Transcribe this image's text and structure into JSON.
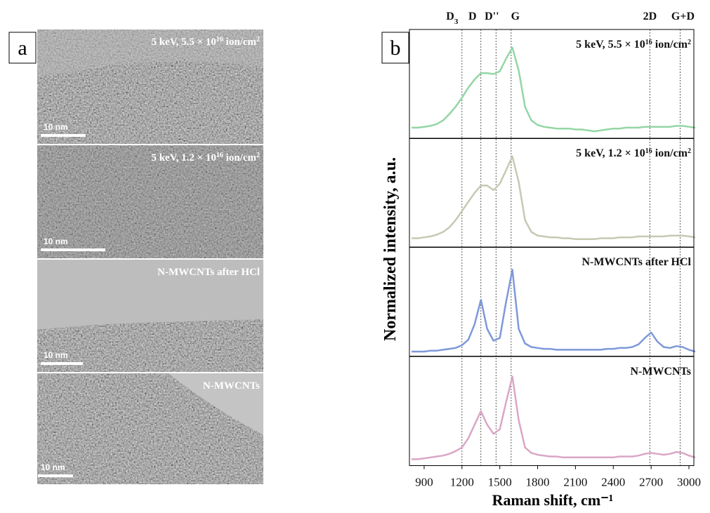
{
  "panel_a": {
    "label": "a",
    "images": [
      {
        "caption": {
          "text": "5 keV, 5.5 × 10",
          "exp": "16",
          "unit": " ion/cm",
          "unit_exp": "2"
        },
        "scale_bar": "10 nm"
      },
      {
        "caption": {
          "text": "5 keV, 1.2 × 10",
          "exp": "16",
          "unit": " ion/cm",
          "unit_exp": "2"
        },
        "scale_bar": "10 nm"
      },
      {
        "caption": {
          "text": "N-MWCNTs after HCl"
        },
        "scale_bar": "10 nm"
      },
      {
        "caption": {
          "text": "N-MWCNTs"
        },
        "scale_bar": "10 nm"
      }
    ]
  },
  "chart_data": {
    "type": "line",
    "panel_label": "b",
    "xlabel": "Raman shift, cm⁻¹",
    "ylabel": "Normalized intensity, a.u.",
    "xlim": [
      800,
      3050
    ],
    "xticks": [
      900,
      1200,
      1500,
      1800,
      2100,
      2400,
      2700,
      3000
    ],
    "ylim": [
      0,
      1.2
    ],
    "x": [
      800,
      850,
      900,
      950,
      1000,
      1050,
      1100,
      1150,
      1200,
      1250,
      1300,
      1350,
      1400,
      1450,
      1500,
      1550,
      1600,
      1650,
      1700,
      1750,
      1800,
      1850,
      1900,
      1950,
      2000,
      2050,
      2100,
      2150,
      2200,
      2250,
      2300,
      2350,
      2400,
      2450,
      2500,
      2550,
      2600,
      2650,
      2700,
      2750,
      2800,
      2850,
      2900,
      2950,
      3000,
      3050
    ],
    "reference_lines": [
      {
        "label": "D",
        "sub": "3",
        "x": 1200
      },
      {
        "label": "D",
        "x": 1350
      },
      {
        "label": "D''",
        "x": 1470
      },
      {
        "label": "G",
        "x": 1590
      },
      {
        "label": "2D",
        "x": 2690
      },
      {
        "label": "G+D",
        "x": 2930
      }
    ],
    "series": [
      {
        "name": "5 keV, 5.5 × 10",
        "name_exp": "16",
        "name_unit": " ion/cm",
        "name_unit_exp": "2",
        "color": "#93d6a4",
        "values": [
          0.12,
          0.12,
          0.13,
          0.14,
          0.16,
          0.2,
          0.27,
          0.35,
          0.45,
          0.56,
          0.65,
          0.72,
          0.72,
          0.71,
          0.74,
          0.88,
          1.0,
          0.75,
          0.35,
          0.2,
          0.15,
          0.13,
          0.12,
          0.11,
          0.11,
          0.11,
          0.1,
          0.1,
          0.09,
          0.08,
          0.09,
          0.1,
          0.11,
          0.11,
          0.12,
          0.12,
          0.12,
          0.13,
          0.13,
          0.13,
          0.13,
          0.13,
          0.14,
          0.14,
          0.13,
          0.12
        ]
      },
      {
        "name": "5 keV, 1.2 × 10",
        "name_exp": "16",
        "name_unit": " ion/cm",
        "name_unit_exp": "2",
        "color": "#c4cab2",
        "values": [
          0.1,
          0.1,
          0.11,
          0.12,
          0.14,
          0.17,
          0.22,
          0.3,
          0.4,
          0.5,
          0.6,
          0.68,
          0.68,
          0.63,
          0.7,
          0.85,
          1.0,
          0.72,
          0.3,
          0.17,
          0.13,
          0.12,
          0.11,
          0.11,
          0.1,
          0.1,
          0.09,
          0.09,
          0.09,
          0.09,
          0.1,
          0.1,
          0.1,
          0.11,
          0.11,
          0.11,
          0.12,
          0.12,
          0.12,
          0.12,
          0.12,
          0.13,
          0.13,
          0.13,
          0.12,
          0.11
        ]
      },
      {
        "name": "N-MWCNTs after HCl",
        "color": "#7e98da",
        "values": [
          0.05,
          0.05,
          0.05,
          0.06,
          0.06,
          0.07,
          0.08,
          0.09,
          0.12,
          0.18,
          0.35,
          0.62,
          0.3,
          0.17,
          0.2,
          0.6,
          0.95,
          0.3,
          0.14,
          0.1,
          0.09,
          0.08,
          0.08,
          0.07,
          0.07,
          0.07,
          0.07,
          0.07,
          0.07,
          0.07,
          0.07,
          0.08,
          0.08,
          0.09,
          0.09,
          0.1,
          0.13,
          0.2,
          0.26,
          0.16,
          0.1,
          0.09,
          0.11,
          0.1,
          0.07,
          0.05
        ]
      },
      {
        "name": "N-MWCNTs",
        "color": "#dba6c6",
        "values": [
          0.07,
          0.07,
          0.08,
          0.09,
          0.1,
          0.11,
          0.13,
          0.16,
          0.2,
          0.3,
          0.45,
          0.6,
          0.45,
          0.35,
          0.4,
          0.7,
          0.98,
          0.5,
          0.2,
          0.14,
          0.12,
          0.11,
          0.1,
          0.1,
          0.09,
          0.09,
          0.09,
          0.09,
          0.09,
          0.09,
          0.09,
          0.09,
          0.09,
          0.1,
          0.1,
          0.1,
          0.11,
          0.13,
          0.14,
          0.13,
          0.12,
          0.13,
          0.15,
          0.14,
          0.11,
          0.09
        ]
      }
    ]
  }
}
